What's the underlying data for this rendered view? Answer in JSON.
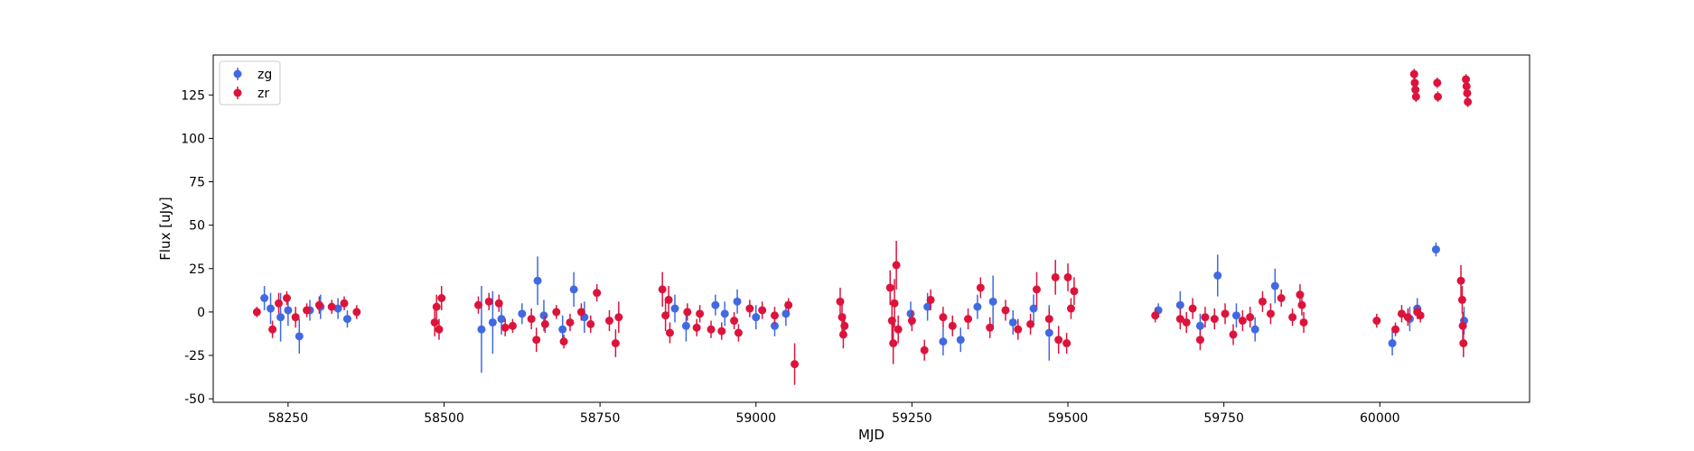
{
  "chart_data": {
    "type": "scatter",
    "title": "",
    "xlabel": "MJD",
    "ylabel": "Flux [uJy]",
    "xlim": [
      58130,
      60240
    ],
    "ylim": [
      -52,
      148
    ],
    "xticks": [
      58250,
      58500,
      58750,
      59000,
      59250,
      59500,
      59750,
      60000
    ],
    "yticks": [
      -50,
      -25,
      0,
      25,
      50,
      75,
      100,
      125
    ],
    "grid": false,
    "legend_position": "top-left",
    "error_bars": true,
    "series": [
      {
        "name": "zg",
        "color": "#4169E1",
        "points": [
          {
            "x": 58212,
            "y": 8,
            "err": 7
          },
          {
            "x": 58222,
            "y": 2,
            "err": 9
          },
          {
            "x": 58238,
            "y": -3,
            "err": 14
          },
          {
            "x": 58250,
            "y": 1,
            "err": 9
          },
          {
            "x": 58268,
            "y": -14,
            "err": 10
          },
          {
            "x": 58285,
            "y": 1,
            "err": 6
          },
          {
            "x": 58302,
            "y": 3,
            "err": 7
          },
          {
            "x": 58330,
            "y": 2,
            "err": 6
          },
          {
            "x": 58345,
            "y": -4,
            "err": 5
          },
          {
            "x": 58560,
            "y": -10,
            "err": 25
          },
          {
            "x": 58578,
            "y": -6,
            "err": 18
          },
          {
            "x": 58592,
            "y": -4,
            "err": 9
          },
          {
            "x": 58625,
            "y": -1,
            "err": 6
          },
          {
            "x": 58650,
            "y": 18,
            "err": 14
          },
          {
            "x": 58660,
            "y": -2,
            "err": 9
          },
          {
            "x": 58690,
            "y": -10,
            "err": 8
          },
          {
            "x": 58708,
            "y": 13,
            "err": 10
          },
          {
            "x": 58725,
            "y": -3,
            "err": 9
          },
          {
            "x": 58870,
            "y": 2,
            "err": 8
          },
          {
            "x": 58888,
            "y": -8,
            "err": 9
          },
          {
            "x": 58935,
            "y": 4,
            "err": 6
          },
          {
            "x": 58950,
            "y": -1,
            "err": 7
          },
          {
            "x": 58970,
            "y": 6,
            "err": 7
          },
          {
            "x": 59000,
            "y": -3,
            "err": 7
          },
          {
            "x": 59030,
            "y": -8,
            "err": 6
          },
          {
            "x": 59048,
            "y": -1,
            "err": 7
          },
          {
            "x": 59248,
            "y": -1,
            "err": 7
          },
          {
            "x": 59275,
            "y": 3,
            "err": 8
          },
          {
            "x": 59300,
            "y": -17,
            "err": 8
          },
          {
            "x": 59328,
            "y": -16,
            "err": 7
          },
          {
            "x": 59355,
            "y": 3,
            "err": 7
          },
          {
            "x": 59380,
            "y": 6,
            "err": 15
          },
          {
            "x": 59412,
            "y": -6,
            "err": 7
          },
          {
            "x": 59445,
            "y": 2,
            "err": 8
          },
          {
            "x": 59470,
            "y": -12,
            "err": 16
          },
          {
            "x": 59645,
            "y": 1,
            "err": 4
          },
          {
            "x": 59680,
            "y": 4,
            "err": 8
          },
          {
            "x": 59712,
            "y": -8,
            "err": 7
          },
          {
            "x": 59740,
            "y": 21,
            "err": 12
          },
          {
            "x": 59770,
            "y": -2,
            "err": 7
          },
          {
            "x": 59800,
            "y": -10,
            "err": 7
          },
          {
            "x": 59832,
            "y": 15,
            "err": 10
          },
          {
            "x": 60020,
            "y": -18,
            "err": 7
          },
          {
            "x": 60048,
            "y": -4,
            "err": 7
          },
          {
            "x": 60060,
            "y": 2,
            "err": 6
          },
          {
            "x": 60090,
            "y": 36,
            "err": 4
          },
          {
            "x": 60135,
            "y": -5,
            "err": 8
          }
        ]
      },
      {
        "name": "zr",
        "color": "#DC143C",
        "points": [
          {
            "x": 58200,
            "y": 0,
            "err": 3
          },
          {
            "x": 58225,
            "y": -10,
            "err": 5
          },
          {
            "x": 58235,
            "y": 5,
            "err": 6
          },
          {
            "x": 58248,
            "y": 8,
            "err": 4
          },
          {
            "x": 58262,
            "y": -3,
            "err": 6
          },
          {
            "x": 58280,
            "y": 1,
            "err": 4
          },
          {
            "x": 58300,
            "y": 4,
            "err": 5
          },
          {
            "x": 58320,
            "y": 3,
            "err": 4
          },
          {
            "x": 58340,
            "y": 5,
            "err": 4
          },
          {
            "x": 58360,
            "y": 0,
            "err": 4
          },
          {
            "x": 58485,
            "y": -6,
            "err": 8
          },
          {
            "x": 58488,
            "y": 3,
            "err": 7
          },
          {
            "x": 58492,
            "y": -10,
            "err": 6
          },
          {
            "x": 58496,
            "y": 8,
            "err": 7
          },
          {
            "x": 58555,
            "y": 4,
            "err": 5
          },
          {
            "x": 58572,
            "y": 6,
            "err": 5
          },
          {
            "x": 58588,
            "y": 5,
            "err": 5
          },
          {
            "x": 58598,
            "y": -9,
            "err": 5
          },
          {
            "x": 58610,
            "y": -8,
            "err": 4
          },
          {
            "x": 58640,
            "y": -4,
            "err": 6
          },
          {
            "x": 58648,
            "y": -16,
            "err": 7
          },
          {
            "x": 58662,
            "y": -7,
            "err": 5
          },
          {
            "x": 58680,
            "y": 0,
            "err": 4
          },
          {
            "x": 58692,
            "y": -17,
            "err": 4
          },
          {
            "x": 58702,
            "y": -6,
            "err": 5
          },
          {
            "x": 58720,
            "y": 0,
            "err": 5
          },
          {
            "x": 58735,
            "y": -7,
            "err": 5
          },
          {
            "x": 58745,
            "y": 11,
            "err": 5
          },
          {
            "x": 58765,
            "y": -5,
            "err": 6
          },
          {
            "x": 58775,
            "y": -18,
            "err": 8
          },
          {
            "x": 58780,
            "y": -3,
            "err": 9
          },
          {
            "x": 58850,
            "y": 13,
            "err": 10
          },
          {
            "x": 58855,
            "y": -2,
            "err": 9
          },
          {
            "x": 58860,
            "y": 7,
            "err": 8
          },
          {
            "x": 58862,
            "y": -12,
            "err": 6
          },
          {
            "x": 58890,
            "y": 0,
            "err": 5
          },
          {
            "x": 58905,
            "y": -9,
            "err": 5
          },
          {
            "x": 58910,
            "y": -1,
            "err": 5
          },
          {
            "x": 58928,
            "y": -10,
            "err": 5
          },
          {
            "x": 58945,
            "y": -11,
            "err": 5
          },
          {
            "x": 58965,
            "y": -5,
            "err": 5
          },
          {
            "x": 58972,
            "y": -12,
            "err": 5
          },
          {
            "x": 58990,
            "y": 2,
            "err": 5
          },
          {
            "x": 59010,
            "y": 1,
            "err": 5
          },
          {
            "x": 59030,
            "y": -2,
            "err": 5
          },
          {
            "x": 59052,
            "y": 4,
            "err": 4
          },
          {
            "x": 59062,
            "y": -30,
            "err": 12
          },
          {
            "x": 59135,
            "y": 6,
            "err": 8
          },
          {
            "x": 59138,
            "y": -3,
            "err": 8
          },
          {
            "x": 59140,
            "y": -13,
            "err": 8
          },
          {
            "x": 59142,
            "y": -8,
            "err": 7
          },
          {
            "x": 59215,
            "y": 14,
            "err": 10
          },
          {
            "x": 59218,
            "y": -5,
            "err": 12
          },
          {
            "x": 59220,
            "y": -18,
            "err": 12
          },
          {
            "x": 59222,
            "y": 5,
            "err": 14
          },
          {
            "x": 59225,
            "y": 27,
            "err": 14
          },
          {
            "x": 59228,
            "y": -10,
            "err": 8
          },
          {
            "x": 59250,
            "y": -5,
            "err": 6
          },
          {
            "x": 59270,
            "y": -22,
            "err": 6
          },
          {
            "x": 59280,
            "y": 7,
            "err": 6
          },
          {
            "x": 59300,
            "y": -3,
            "err": 6
          },
          {
            "x": 59315,
            "y": -8,
            "err": 6
          },
          {
            "x": 59340,
            "y": -4,
            "err": 6
          },
          {
            "x": 59360,
            "y": 14,
            "err": 6
          },
          {
            "x": 59375,
            "y": -9,
            "err": 6
          },
          {
            "x": 59400,
            "y": 1,
            "err": 6
          },
          {
            "x": 59420,
            "y": -10,
            "err": 6
          },
          {
            "x": 59440,
            "y": -7,
            "err": 6
          },
          {
            "x": 59450,
            "y": 13,
            "err": 10
          },
          {
            "x": 59470,
            "y": -4,
            "err": 6
          },
          {
            "x": 59480,
            "y": 20,
            "err": 10
          },
          {
            "x": 59485,
            "y": -16,
            "err": 8
          },
          {
            "x": 59498,
            "y": -18,
            "err": 6
          },
          {
            "x": 59500,
            "y": 20,
            "err": 8
          },
          {
            "x": 59505,
            "y": 2,
            "err": 6
          },
          {
            "x": 59510,
            "y": 12,
            "err": 8
          },
          {
            "x": 59640,
            "y": -2,
            "err": 4
          },
          {
            "x": 59680,
            "y": -4,
            "err": 6
          },
          {
            "x": 59690,
            "y": -6,
            "err": 6
          },
          {
            "x": 59700,
            "y": 2,
            "err": 6
          },
          {
            "x": 59712,
            "y": -16,
            "err": 6
          },
          {
            "x": 59720,
            "y": -3,
            "err": 6
          },
          {
            "x": 59735,
            "y": -4,
            "err": 6
          },
          {
            "x": 59752,
            "y": -1,
            "err": 6
          },
          {
            "x": 59765,
            "y": -13,
            "err": 6
          },
          {
            "x": 59780,
            "y": -5,
            "err": 6
          },
          {
            "x": 59792,
            "y": -3,
            "err": 6
          },
          {
            "x": 59812,
            "y": 6,
            "err": 6
          },
          {
            "x": 59825,
            "y": -1,
            "err": 6
          },
          {
            "x": 59842,
            "y": 8,
            "err": 5
          },
          {
            "x": 59860,
            "y": -3,
            "err": 5
          },
          {
            "x": 59872,
            "y": 10,
            "err": 6
          },
          {
            "x": 59875,
            "y": 4,
            "err": 6
          },
          {
            "x": 59878,
            "y": -6,
            "err": 6
          },
          {
            "x": 59995,
            "y": -5,
            "err": 4
          },
          {
            "x": 60025,
            "y": -10,
            "err": 4
          },
          {
            "x": 60035,
            "y": -1,
            "err": 5
          },
          {
            "x": 60045,
            "y": -3,
            "err": 5
          },
          {
            "x": 60055,
            "y": 137,
            "err": 3
          },
          {
            "x": 60056,
            "y": 132,
            "err": 3
          },
          {
            "x": 60057,
            "y": 128,
            "err": 3
          },
          {
            "x": 60058,
            "y": 124,
            "err": 3
          },
          {
            "x": 60060,
            "y": 0,
            "err": 4
          },
          {
            "x": 60065,
            "y": -2,
            "err": 4
          },
          {
            "x": 60092,
            "y": 132,
            "err": 3
          },
          {
            "x": 60093,
            "y": 124,
            "err": 3
          },
          {
            "x": 60130,
            "y": 18,
            "err": 9
          },
          {
            "x": 60132,
            "y": 7,
            "err": 8
          },
          {
            "x": 60133,
            "y": -8,
            "err": 8
          },
          {
            "x": 60134,
            "y": -18,
            "err": 8
          },
          {
            "x": 60138,
            "y": 134,
            "err": 3
          },
          {
            "x": 60139,
            "y": 130,
            "err": 3
          },
          {
            "x": 60140,
            "y": 126,
            "err": 3
          },
          {
            "x": 60141,
            "y": 121,
            "err": 3
          }
        ]
      }
    ]
  }
}
